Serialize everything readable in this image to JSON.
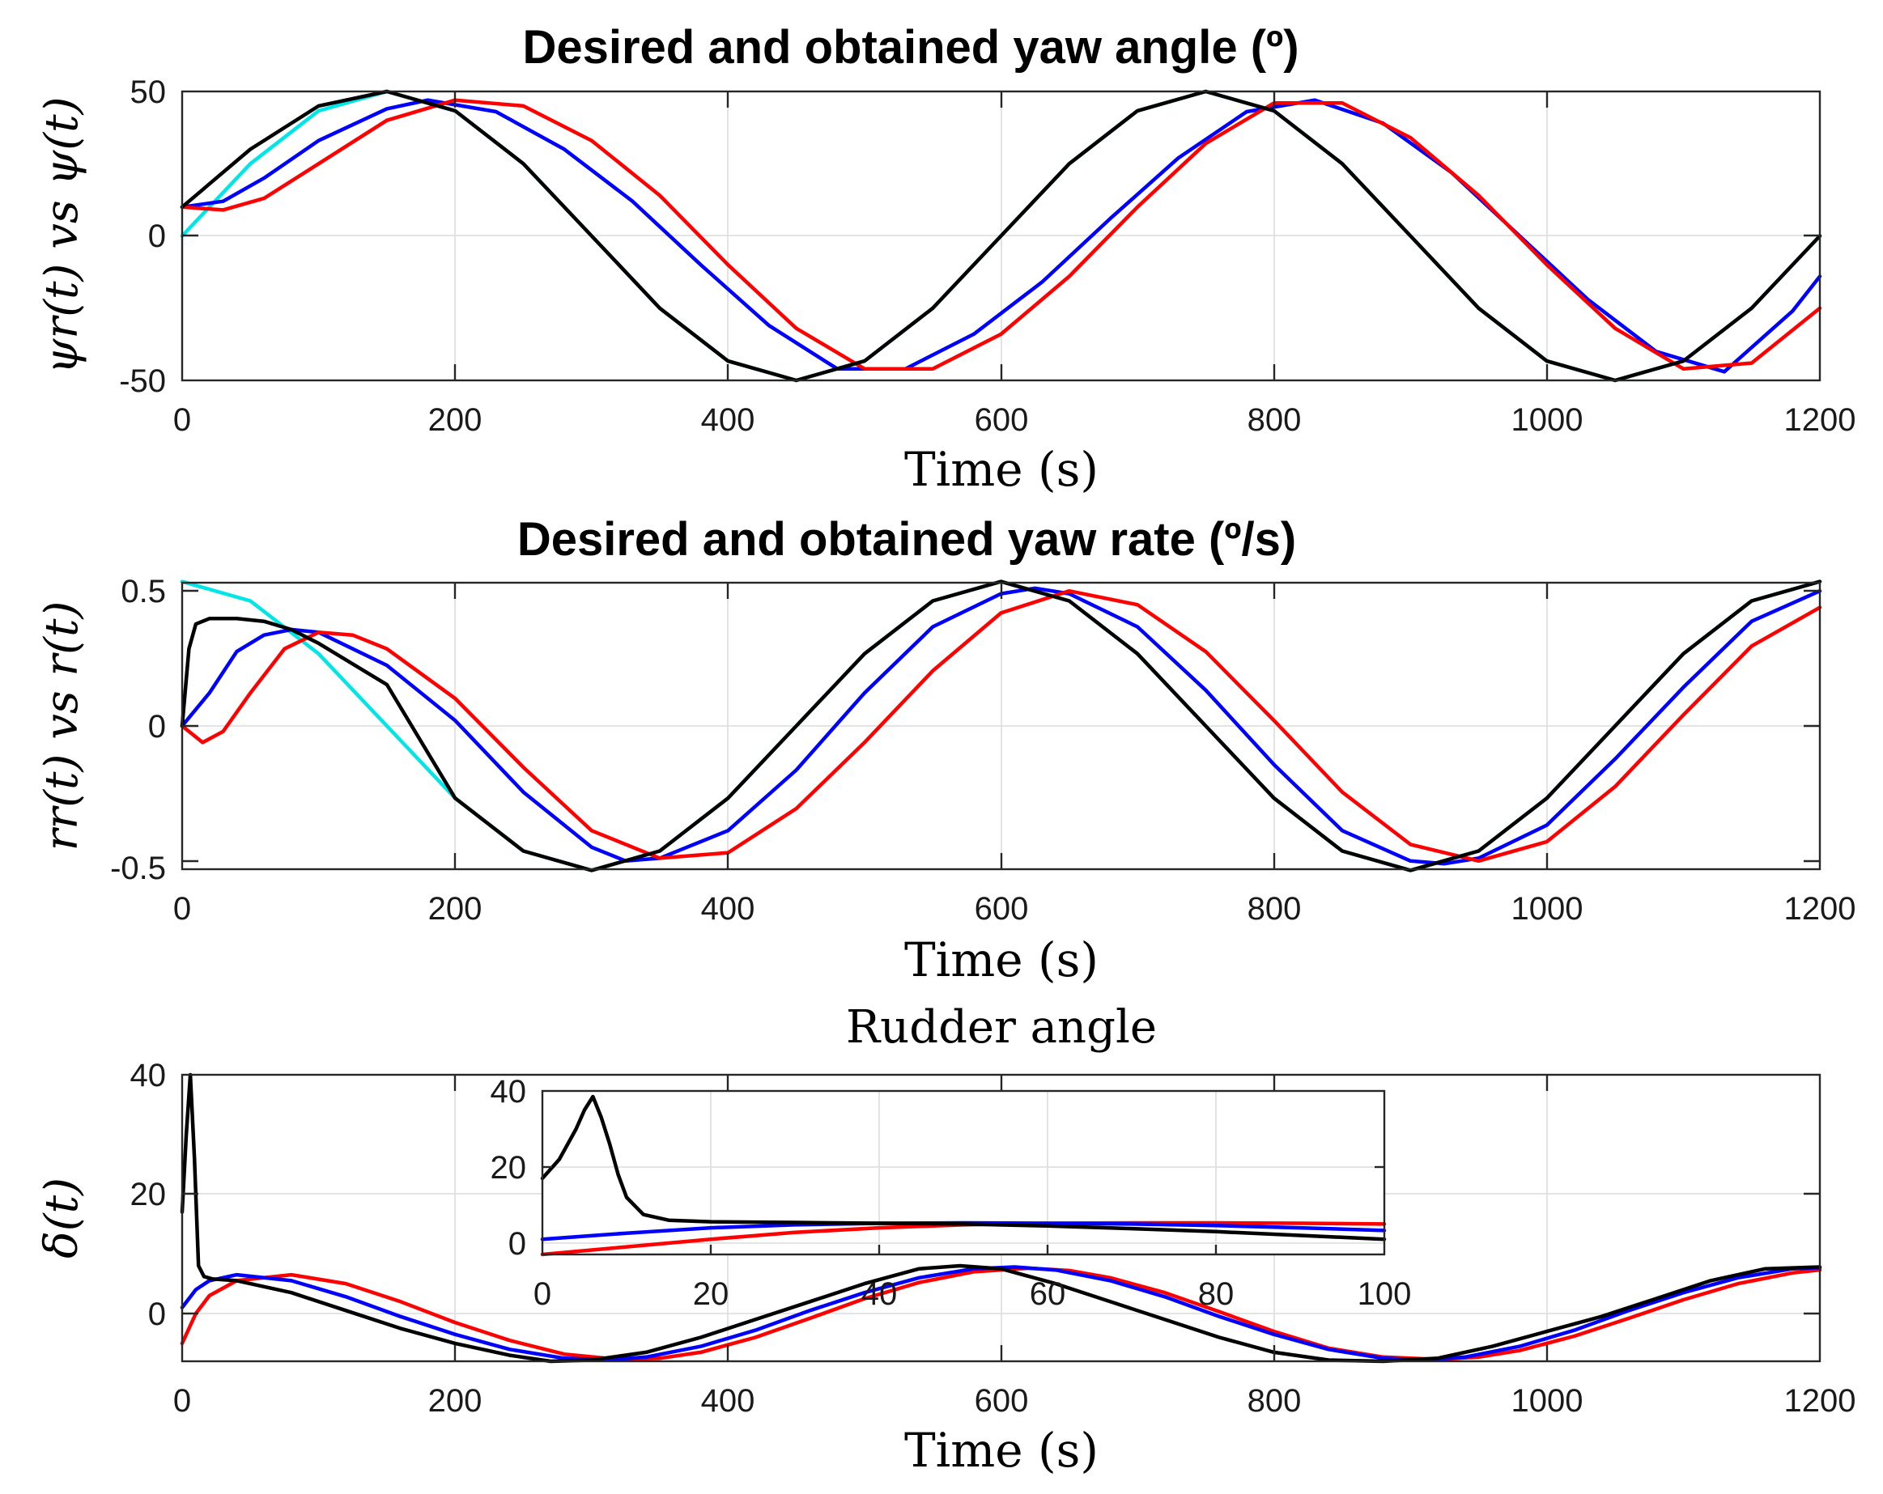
{
  "chart_data": [
    {
      "id": "yaw_angle",
      "type": "line",
      "title": "Desired and obtained yaw angle (º)",
      "xlabel": "Time (s)",
      "ylabel": "ψr(t) vs ψ(t)",
      "xlim": [
        0,
        1200
      ],
      "ylim": [
        -50,
        50
      ],
      "xticks": [
        0,
        200,
        400,
        600,
        800,
        1000,
        1200
      ],
      "yticks": [
        -50,
        0,
        50
      ],
      "xtick_labels": [
        "0",
        "200",
        "400",
        "600",
        "800",
        "1000",
        "1200"
      ],
      "ytick_labels": [
        "-50",
        "0",
        "50"
      ],
      "grid": true,
      "series": [
        {
          "name": "reference",
          "color": "#00e5e5",
          "width": 7,
          "x": [
            0,
            50,
            100,
            150,
            200,
            250,
            300,
            350,
            400,
            450,
            500,
            550,
            600,
            650,
            700,
            750,
            800,
            850,
            900,
            950,
            1000,
            1050,
            1100,
            1150,
            1200
          ],
          "y": [
            0,
            25,
            43.3,
            50,
            43.3,
            25,
            0,
            -25,
            -43.3,
            -50,
            -43.3,
            -25,
            0,
            25,
            43.3,
            50,
            43.3,
            25,
            0,
            -25,
            -43.3,
            -50,
            -43.3,
            -25,
            0
          ]
        },
        {
          "name": "black",
          "color": "#000000",
          "width": 4.5,
          "x": [
            0,
            50,
            100,
            150,
            200,
            250,
            300,
            350,
            400,
            450,
            500,
            550,
            600,
            650,
            700,
            750,
            800,
            850,
            900,
            950,
            1000,
            1050,
            1100,
            1150,
            1200
          ],
          "y": [
            10,
            30,
            45,
            50,
            43.3,
            25,
            0,
            -25,
            -43.3,
            -50,
            -43.3,
            -25,
            0,
            25,
            43.3,
            50,
            43.3,
            25,
            0,
            -25,
            -43.3,
            -50,
            -43.3,
            -25,
            0
          ]
        },
        {
          "name": "blue",
          "color": "#0000ff",
          "width": 4.5,
          "x": [
            0,
            30,
            60,
            100,
            150,
            180,
            230,
            280,
            330,
            380,
            430,
            480,
            530,
            580,
            630,
            680,
            730,
            780,
            830,
            880,
            930,
            980,
            1030,
            1080,
            1130,
            1180,
            1200
          ],
          "y": [
            10,
            12,
            20,
            33,
            44,
            47,
            43,
            30,
            12,
            -10,
            -31,
            -46,
            -46,
            -34,
            -16,
            6,
            27,
            43,
            47,
            39,
            22,
            0,
            -22,
            -40,
            -47,
            -26,
            -14
          ]
        },
        {
          "name": "red",
          "color": "#ff0000",
          "width": 4.5,
          "x": [
            0,
            30,
            60,
            100,
            150,
            200,
            250,
            300,
            350,
            400,
            450,
            500,
            550,
            600,
            650,
            700,
            750,
            800,
            850,
            900,
            950,
            1000,
            1050,
            1100,
            1150,
            1200
          ],
          "y": [
            10,
            9,
            13,
            25,
            40,
            47,
            45,
            33,
            14,
            -10,
            -32,
            -46,
            -46,
            -34,
            -14,
            10,
            32,
            46,
            46,
            34,
            14,
            -10,
            -32,
            -46,
            -44,
            -25
          ]
        }
      ]
    },
    {
      "id": "yaw_rate",
      "type": "line",
      "title": "Desired and obtained yaw rate (º/s)",
      "xlabel": "Time (s)",
      "ylabel": "rr(t) vs r(t)",
      "xlim": [
        0,
        1200
      ],
      "ylim": [
        -0.52,
        0.52
      ],
      "xticks": [
        0,
        200,
        400,
        600,
        800,
        1000,
        1200
      ],
      "yticks": [
        -0.5,
        0,
        0.5
      ],
      "xtick_labels": [
        "0",
        "200",
        "400",
        "600",
        "800",
        "1000",
        "1200"
      ],
      "ytick_labels": [
        "-0.5",
        "0",
        "0.5"
      ],
      "grid": true,
      "series": [
        {
          "name": "reference",
          "color": "#00e5e5",
          "width": 7,
          "x": [
            0,
            50,
            100,
            150,
            200,
            250,
            300,
            350,
            400,
            450,
            500,
            550,
            600,
            650,
            700,
            750,
            800,
            850,
            900,
            950,
            1000,
            1050,
            1100,
            1150,
            1200
          ],
          "y": [
            0.524,
            0.454,
            0.262,
            0,
            -0.262,
            -0.454,
            -0.524,
            -0.454,
            -0.262,
            0,
            0.262,
            0.454,
            0.524,
            0.454,
            0.262,
            0,
            -0.262,
            -0.454,
            -0.524,
            -0.454,
            -0.262,
            0,
            0.262,
            0.454,
            0.524
          ]
        },
        {
          "name": "black",
          "color": "#000000",
          "width": 4.5,
          "x": [
            0,
            5,
            10,
            20,
            40,
            60,
            80,
            100,
            150,
            200,
            250,
            300,
            350,
            400,
            450,
            500,
            550,
            600,
            650,
            700,
            750,
            800,
            850,
            900,
            950,
            1000,
            1050,
            1100,
            1150,
            1200
          ],
          "y": [
            0,
            0.28,
            0.37,
            0.39,
            0.39,
            0.38,
            0.35,
            0.3,
            0.15,
            -0.262,
            -0.454,
            -0.524,
            -0.454,
            -0.262,
            0,
            0.262,
            0.454,
            0.524,
            0.454,
            0.262,
            0,
            -0.262,
            -0.454,
            -0.524,
            -0.454,
            -0.262,
            0,
            0.262,
            0.454,
            0.524
          ]
        },
        {
          "name": "blue",
          "color": "#0000ff",
          "width": 4.5,
          "x": [
            0,
            20,
            40,
            60,
            80,
            100,
            150,
            200,
            250,
            300,
            325,
            350,
            400,
            450,
            500,
            550,
            600,
            625,
            650,
            700,
            750,
            800,
            850,
            900,
            925,
            950,
            1000,
            1050,
            1100,
            1150,
            1200
          ],
          "y": [
            0,
            0.12,
            0.27,
            0.33,
            0.35,
            0.34,
            0.22,
            0.02,
            -0.24,
            -0.44,
            -0.49,
            -0.48,
            -0.38,
            -0.16,
            0.12,
            0.36,
            0.48,
            0.5,
            0.48,
            0.36,
            0.13,
            -0.14,
            -0.38,
            -0.49,
            -0.5,
            -0.48,
            -0.36,
            -0.12,
            0.14,
            0.38,
            0.49
          ]
        },
        {
          "name": "red",
          "color": "#ff0000",
          "width": 4.5,
          "x": [
            0,
            15,
            30,
            50,
            75,
            100,
            125,
            150,
            200,
            250,
            300,
            350,
            400,
            450,
            500,
            550,
            600,
            650,
            700,
            750,
            800,
            850,
            900,
            950,
            1000,
            1050,
            1100,
            1150,
            1200
          ],
          "y": [
            0,
            -0.06,
            -0.02,
            0.12,
            0.28,
            0.34,
            0.33,
            0.28,
            0.1,
            -0.15,
            -0.38,
            -0.48,
            -0.46,
            -0.3,
            -0.06,
            0.2,
            0.41,
            0.49,
            0.44,
            0.27,
            0.02,
            -0.24,
            -0.43,
            -0.49,
            -0.42,
            -0.22,
            0.04,
            0.29,
            0.43
          ]
        }
      ]
    },
    {
      "id": "rudder_angle",
      "type": "line",
      "title": "Rudder angle",
      "xlabel": "Time (s)",
      "ylabel": "δ(t)",
      "xlim": [
        0,
        1200
      ],
      "ylim": [
        -8,
        40
      ],
      "xticks": [
        0,
        200,
        400,
        600,
        800,
        1000,
        1200
      ],
      "yticks": [
        0,
        20,
        40
      ],
      "xtick_labels": [
        "0",
        "200",
        "400",
        "600",
        "800",
        "1000",
        "1200"
      ],
      "ytick_labels": [
        "0",
        "20",
        "40"
      ],
      "grid": true,
      "series": [
        {
          "name": "black",
          "color": "#000000",
          "width": 4.5,
          "x": [
            0,
            3,
            6,
            9,
            12,
            16,
            22,
            40,
            80,
            120,
            160,
            200,
            240,
            270,
            300,
            340,
            380,
            420,
            460,
            500,
            540,
            570,
            600,
            640,
            680,
            720,
            760,
            800,
            840,
            880,
            920,
            960,
            1000,
            1040,
            1080,
            1120,
            1160,
            1200
          ],
          "y": [
            17,
            30,
            40,
            26,
            8,
            6.2,
            5.8,
            5.5,
            3.5,
            0.5,
            -2.5,
            -5,
            -7,
            -8,
            -7.8,
            -6.5,
            -4,
            -1,
            2,
            5,
            7.5,
            8,
            7.5,
            5,
            2,
            -1,
            -4,
            -6.5,
            -7.8,
            -8,
            -7.5,
            -5.5,
            -3,
            -0.5,
            2.5,
            5.5,
            7.5,
            7.8
          ]
        },
        {
          "name": "blue",
          "color": "#0000ff",
          "width": 4.5,
          "x": [
            0,
            10,
            20,
            40,
            80,
            120,
            160,
            200,
            240,
            280,
            310,
            340,
            380,
            420,
            460,
            500,
            540,
            580,
            610,
            640,
            680,
            720,
            760,
            800,
            840,
            880,
            910,
            940,
            980,
            1020,
            1060,
            1100,
            1140,
            1180,
            1200
          ],
          "y": [
            1,
            4,
            5.5,
            6.5,
            5.5,
            2.8,
            -0.5,
            -3.5,
            -6,
            -7.5,
            -7.8,
            -7.3,
            -5.5,
            -2.8,
            0.5,
            3.5,
            6,
            7.5,
            7.8,
            7.3,
            5.5,
            2.8,
            -0.5,
            -3.5,
            -6,
            -7.5,
            -7.8,
            -7.3,
            -5.5,
            -2.8,
            0.5,
            3.5,
            6,
            7.5,
            7.7
          ]
        },
        {
          "name": "red",
          "color": "#ff0000",
          "width": 4.5,
          "x": [
            0,
            10,
            20,
            40,
            80,
            120,
            160,
            200,
            240,
            280,
            320,
            350,
            380,
            420,
            460,
            500,
            540,
            580,
            620,
            650,
            680,
            720,
            760,
            800,
            840,
            880,
            920,
            950,
            980,
            1020,
            1060,
            1100,
            1140,
            1180,
            1200
          ],
          "y": [
            -5,
            0,
            3,
            5.5,
            6.5,
            5,
            2,
            -1.5,
            -4.5,
            -6.8,
            -7.7,
            -7.5,
            -6.5,
            -4,
            -0.8,
            2.5,
            5.2,
            7,
            7.6,
            7.2,
            6,
            3.5,
            0.3,
            -3,
            -5.8,
            -7.3,
            -7.7,
            -7.3,
            -6.2,
            -3.8,
            -0.8,
            2.3,
            5,
            6.8,
            7.3
          ]
        }
      ],
      "inset": {
        "xlim": [
          0,
          100
        ],
        "ylim": [
          -3,
          40
        ],
        "xticks": [
          0,
          20,
          40,
          60,
          80,
          100
        ],
        "yticks": [
          0,
          20,
          40
        ],
        "xtick_labels": [
          "0",
          "20",
          "40",
          "60",
          "80",
          "100"
        ],
        "ytick_labels": [
          "0",
          "20",
          "40"
        ],
        "grid": true,
        "series": [
          {
            "name": "black",
            "color": "#000000",
            "width": 4.5,
            "x": [
              0,
              2,
              4,
              5,
              6,
              7,
              8,
              9,
              10,
              12,
              15,
              20,
              30,
              40,
              50,
              60,
              70,
              80,
              90,
              100
            ],
            "y": [
              17,
              22,
              30,
              35,
              38.5,
              33,
              26,
              18,
              12,
              7.5,
              6,
              5.6,
              5.4,
              5.2,
              5,
              4.5,
              3.8,
              3,
              2,
              1
            ]
          },
          {
            "name": "blue",
            "color": "#0000ff",
            "width": 4.5,
            "x": [
              0,
              10,
              20,
              30,
              40,
              50,
              60,
              70,
              80,
              90,
              100
            ],
            "y": [
              1,
              2.6,
              4,
              4.8,
              5.2,
              5.3,
              5.2,
              5,
              4.6,
              4,
              3.3
            ]
          },
          {
            "name": "red",
            "color": "#ff0000",
            "width": 4.5,
            "x": [
              0,
              10,
              20,
              30,
              40,
              50,
              60,
              70,
              80,
              90,
              100
            ],
            "y": [
              -3,
              -1,
              1,
              2.8,
              4,
              4.8,
              5.2,
              5.3,
              5.3,
              5.2,
              5
            ]
          }
        ]
      }
    }
  ]
}
